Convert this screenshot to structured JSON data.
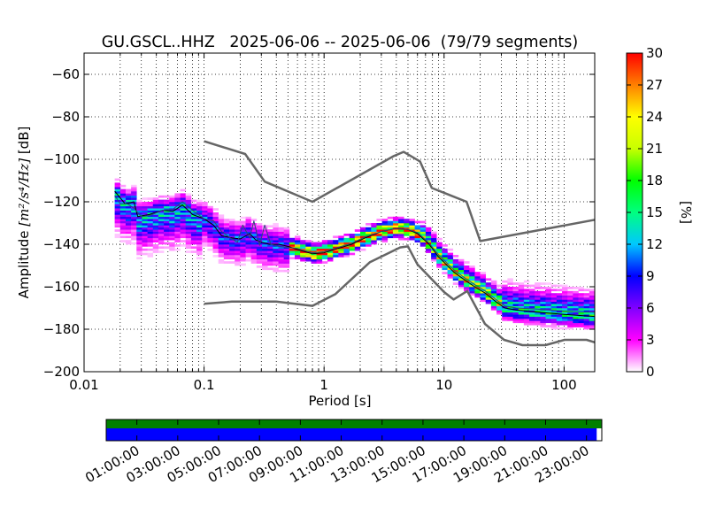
{
  "chart_data": [
    {
      "type": "heatmap",
      "title": "GU.GSCL..HHZ   2025-06-06 -- 2025-06-06  (79/79 segments)",
      "xlabel": "Period [s]",
      "ylabel": "Amplitude [m²/s⁴/Hz] [dB]",
      "ylabel_parts": {
        "prefix": "Amplitude ",
        "math": "[m²/s⁴/Hz]",
        "suffix": " [dB]"
      },
      "x_scale": "log",
      "xlim": [
        0.01,
        180
      ],
      "ylim": [
        -200,
        -50
      ],
      "x_ticks": [
        0.01,
        0.1,
        1,
        10,
        100
      ],
      "x_tick_labels": [
        "0.01",
        "0.1",
        "1",
        "10",
        "100"
      ],
      "y_ticks": [
        -200,
        -180,
        -160,
        -140,
        -120,
        -100,
        -80,
        -60
      ],
      "y_tick_labels": [
        "−200",
        "−180",
        "−160",
        "−140",
        "−120",
        "−100",
        "−80",
        "−60"
      ],
      "grid": true,
      "colorbar": {
        "label": "[%]",
        "range": [
          0,
          30
        ],
        "ticks": [
          0,
          3,
          6,
          9,
          12,
          15,
          18,
          21,
          24,
          27,
          30
        ],
        "tick_labels": [
          "0",
          "3",
          "6",
          "9",
          "12",
          "15",
          "18",
          "21",
          "24",
          "27",
          "30"
        ],
        "colors": [
          "#ffffff",
          "#ff00ff",
          "#8000ff",
          "#0000ff",
          "#00c8ff",
          "#00ff80",
          "#00ff00",
          "#c8ff00",
          "#ffff00",
          "#ff8000",
          "#ff0000"
        ]
      },
      "series": [
        {
          "role": "new-high-noise-model",
          "color": "#666666",
          "points": [
            [
              0.1,
              -91.5
            ],
            [
              0.22,
              -97.5
            ],
            [
              0.32,
              -110.5
            ],
            [
              0.8,
              -120
            ],
            [
              3.8,
              -98.5
            ],
            [
              4.6,
              -96.5
            ],
            [
              6.3,
              -101
            ],
            [
              7.9,
              -113.5
            ],
            [
              15.4,
              -120
            ],
            [
              20,
              -138.5
            ],
            [
              200,
              -128
            ]
          ]
        },
        {
          "role": "new-low-noise-model",
          "color": "#666666",
          "points": [
            [
              0.1,
              -168
            ],
            [
              0.17,
              -167
            ],
            [
              0.4,
              -167
            ],
            [
              0.8,
              -169
            ],
            [
              1.24,
              -163.5
            ],
            [
              2.4,
              -148.5
            ],
            [
              4.3,
              -141.5
            ],
            [
              5,
              -141
            ],
            [
              6,
              -149.5
            ],
            [
              10,
              -162.5
            ],
            [
              12,
              -166
            ],
            [
              15.6,
              -162
            ],
            [
              21.9,
              -177.5
            ],
            [
              31.6,
              -185
            ],
            [
              45,
              -187.5
            ],
            [
              70,
              -187.5
            ],
            [
              101,
              -185
            ],
            [
              154,
              -185
            ],
            [
              200,
              -187
            ]
          ]
        },
        {
          "role": "mode",
          "color": "#000000",
          "points": [
            [
              0.018,
              -115
            ],
            [
              0.022,
              -121
            ],
            [
              0.026,
              -120
            ],
            [
              0.028,
              -127
            ],
            [
              0.035,
              -126
            ],
            [
              0.045,
              -124
            ],
            [
              0.055,
              -124.5
            ],
            [
              0.066,
              -121.5
            ],
            [
              0.08,
              -126
            ],
            [
              0.1,
              -128
            ],
            [
              0.12,
              -131
            ],
            [
              0.14,
              -136
            ],
            [
              0.17,
              -137
            ],
            [
              0.2,
              -137.5
            ],
            [
              0.24,
              -135
            ],
            [
              0.27,
              -138
            ],
            [
              0.3,
              -139
            ],
            [
              0.35,
              -140
            ],
            [
              0.42,
              -140
            ],
            [
              0.5,
              -141
            ],
            [
              0.6,
              -142.5
            ],
            [
              0.8,
              -144.5
            ],
            [
              1.0,
              -144
            ],
            [
              1.3,
              -142
            ],
            [
              1.7,
              -140
            ],
            [
              2.2,
              -137
            ],
            [
              3.0,
              -134
            ],
            [
              4.0,
              -132.5
            ],
            [
              5.0,
              -133
            ],
            [
              6.0,
              -135
            ],
            [
              7.5,
              -140
            ],
            [
              9.0,
              -146
            ],
            [
              10,
              -148.5
            ],
            [
              12,
              -153
            ],
            [
              15,
              -157
            ],
            [
              18,
              -160
            ],
            [
              22,
              -163
            ],
            [
              27,
              -167
            ],
            [
              32,
              -170
            ],
            [
              40,
              -171
            ],
            [
              60,
              -172
            ],
            [
              100,
              -173
            ],
            [
              180,
              -174
            ]
          ]
        },
        {
          "role": "mean",
          "color": "#2a4a7a",
          "points": [
            [
              0.018,
              -117
            ],
            [
              0.02,
              -121
            ],
            [
              0.023,
              -121
            ],
            [
              0.026,
              -123
            ],
            [
              0.03,
              -127
            ],
            [
              0.035,
              -126.5
            ],
            [
              0.045,
              -124
            ],
            [
              0.055,
              -123.5
            ],
            [
              0.066,
              -120
            ],
            [
              0.08,
              -124
            ],
            [
              0.1,
              -128
            ],
            [
              0.12,
              -129
            ],
            [
              0.14,
              -134
            ],
            [
              0.17,
              -137.5
            ],
            [
              0.19,
              -139
            ],
            [
              0.21,
              -131
            ],
            [
              0.24,
              -137
            ],
            [
              0.26,
              -129
            ],
            [
              0.29,
              -140.5
            ],
            [
              0.32,
              -131
            ],
            [
              0.36,
              -140
            ],
            [
              0.42,
              -141
            ],
            [
              0.5,
              -141.5
            ],
            [
              0.6,
              -142
            ],
            [
              0.8,
              -144
            ],
            [
              1.0,
              -143.5
            ],
            [
              1.3,
              -141.5
            ],
            [
              1.7,
              -139.5
            ],
            [
              2.2,
              -136.5
            ],
            [
              3.0,
              -134
            ],
            [
              4.0,
              -132.5
            ],
            [
              5.0,
              -133
            ],
            [
              6.0,
              -134.5
            ],
            [
              7.5,
              -139.5
            ],
            [
              9.0,
              -145
            ],
            [
              10,
              -147.5
            ],
            [
              12,
              -152
            ],
            [
              15,
              -156
            ],
            [
              18,
              -159
            ],
            [
              22,
              -162
            ],
            [
              27,
              -166
            ],
            [
              32,
              -169
            ],
            [
              40,
              -170
            ],
            [
              60,
              -170.5
            ],
            [
              100,
              -171.5
            ],
            [
              180,
              -172
            ]
          ]
        }
      ]
    },
    {
      "type": "timeline",
      "x_tick_labels": [
        "01:00:00",
        "03:00:00",
        "05:00:00",
        "07:00:00",
        "09:00:00",
        "11:00:00",
        "13:00:00",
        "15:00:00",
        "17:00:00",
        "19:00:00",
        "21:00:00",
        "23:00:00"
      ],
      "x_tick_hours": [
        1,
        3,
        5,
        7,
        9,
        11,
        13,
        15,
        17,
        19,
        21,
        23
      ],
      "xlim_hours": [
        -0.5,
        23.75
      ],
      "coverage": [
        {
          "role": "data-available",
          "color": "#008000",
          "start_hour": -0.5,
          "end_hour": 23.75
        },
        {
          "role": "psd-segments",
          "color": "#0000ff",
          "start_hour": -0.5,
          "end_hour": 23.5
        }
      ]
    }
  ]
}
